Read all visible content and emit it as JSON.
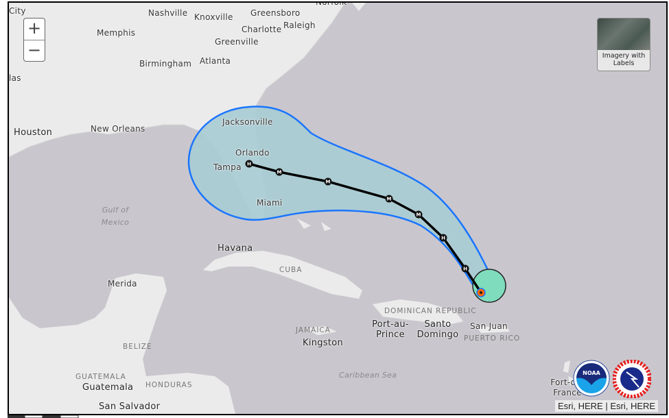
{
  "map": {
    "zoom_in_label": "+",
    "zoom_out_label": "−",
    "basemap_toggle_label": "Imagery with Labels",
    "attribution": "Esri, HERE | Esri, HERE",
    "logos": {
      "noaa": "NOAA",
      "nws": "NATIONAL WEATHER SERVICE"
    },
    "cities": [
      "Nashville",
      "Knoxville",
      "Greensboro",
      "Norfolk",
      "City",
      "Memphis",
      "Charlotte",
      "Raleigh",
      "Greenville",
      "Birmingham",
      "Atlanta",
      "las",
      "Houston",
      "New Orleans",
      "Jacksonville",
      "Orlando",
      "Tampa",
      "Miami",
      "Havana",
      "Merida",
      "Kingston",
      "Port-au-Prince",
      "Santo Domingo",
      "San Juan",
      "Guatemala",
      "San Salvador",
      "Fort-de-France"
    ],
    "countries": [
      "CUBA",
      "DOMINICAN REPUBLIC",
      "JAMAICA",
      "PUERTO RICO",
      "BELIZE",
      "GUATEMALA",
      "HONDURAS"
    ],
    "water": [
      "Gulf of Mexico",
      "Caribbean Sea"
    ],
    "track_points": [
      "H",
      "M",
      "M",
      "M",
      "M",
      "H",
      "H"
    ],
    "colors": {
      "water": "#c9c7cd",
      "land": "#ebebeb",
      "cone_fill": "#a8ccd4",
      "cone_outline": "#1a75ff",
      "current_wind": "#7fdcbc",
      "current_position": "#ff6600",
      "track": "#000000"
    }
  }
}
